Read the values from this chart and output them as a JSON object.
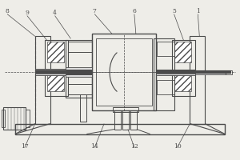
{
  "bg_color": "#eeede8",
  "line_color": "#4a4a4a",
  "figsize": [
    3.0,
    2.0
  ],
  "dpi": 100
}
